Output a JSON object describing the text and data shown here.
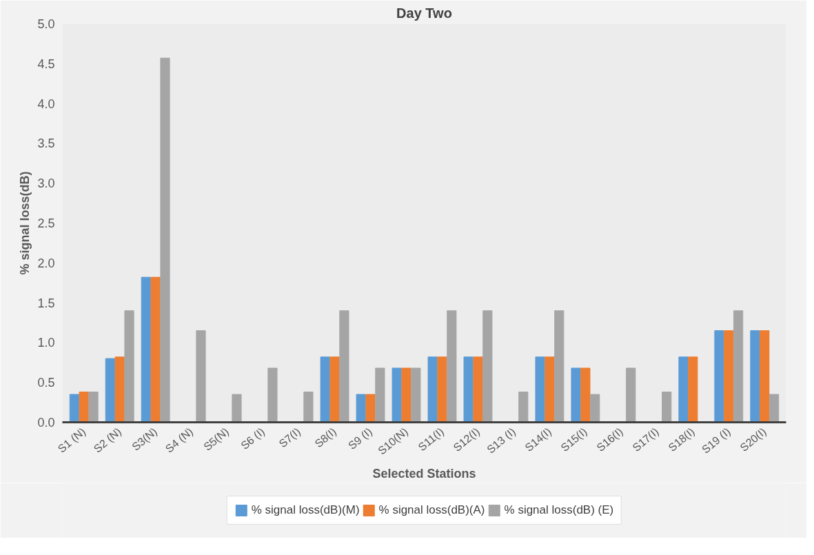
{
  "chart_data": {
    "type": "bar",
    "title": "Day Two",
    "xlabel": "Selected Stations",
    "ylabel": "% signal loss(dB)",
    "categories": [
      "S1 (N)",
      "S2 (N)",
      "S3(N)",
      "S4 (N)",
      "S5(N)",
      "S6 (I)",
      "S7(I)",
      "S8(I)",
      "S9 (I)",
      "S10(N)",
      "S11(I)",
      "S12(I)",
      "S13 (I)",
      "S14(I)",
      "S15(I)",
      "S16(I)",
      "S17(I)",
      "S18(I)",
      "S19 (I)",
      "S20(I)"
    ],
    "series": [
      {
        "name": "% signal loss(dB)(M)",
        "color": "#5b9bd5",
        "values": [
          0.35,
          0.8,
          1.82,
          0,
          0,
          0,
          0,
          0.82,
          0.35,
          0.68,
          0.82,
          0.82,
          0,
          0.82,
          0.68,
          0,
          0,
          0.82,
          1.15,
          1.15
        ]
      },
      {
        "name": "% signal loss(dB)(A)",
        "color": "#ed7d31",
        "values": [
          0.38,
          0.82,
          1.82,
          0,
          0,
          0,
          0,
          0.82,
          0.35,
          0.68,
          0.82,
          0.82,
          0,
          0.82,
          0.68,
          0,
          0,
          0.82,
          1.15,
          1.15
        ]
      },
      {
        "name": "% signal loss(dB) (E)",
        "color": "#a5a5a5",
        "values": [
          0.38,
          1.4,
          4.57,
          1.15,
          0.35,
          0.68,
          0.38,
          1.4,
          0.68,
          0.68,
          1.4,
          1.4,
          0.38,
          1.4,
          0.35,
          0.68,
          0.38,
          0,
          1.4,
          0.35
        ]
      }
    ],
    "ylim": [
      0,
      5
    ],
    "yticks": [
      {
        "value": 0,
        "label": "0.0"
      },
      {
        "value": 0.5,
        "label": "0.5"
      },
      {
        "value": 1,
        "label": "1.0"
      },
      {
        "value": 1.5,
        "label": "1.5"
      },
      {
        "value": 2,
        "label": "2.0"
      },
      {
        "value": 2.5,
        "label": "2.5"
      },
      {
        "value": 3,
        "label": "3.0"
      },
      {
        "value": 3.5,
        "label": "3.5"
      },
      {
        "value": 4,
        "label": "4.0"
      },
      {
        "value": 4.5,
        "label": "4.5"
      },
      {
        "value": 5,
        "label": "5.0"
      }
    ],
    "grid": false,
    "legend": "bottom"
  }
}
